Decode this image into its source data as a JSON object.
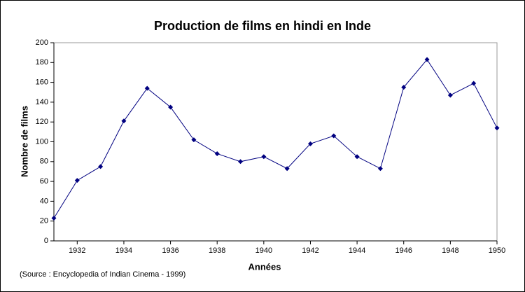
{
  "chart_data": {
    "type": "line",
    "title": "Production de films en hindi en Inde",
    "xlabel": "Années",
    "ylabel": "Nombre de films",
    "source": "(Source : Encyclopedia of Indian Cinema - 1999)",
    "x": [
      1931,
      1932,
      1933,
      1934,
      1935,
      1936,
      1937,
      1938,
      1939,
      1940,
      1941,
      1942,
      1943,
      1944,
      1945,
      1946,
      1947,
      1948,
      1949,
      1950
    ],
    "series": [
      {
        "color": "#000080",
        "values": [
          23,
          61,
          75,
          121,
          154,
          135,
          102,
          88,
          80,
          85,
          73,
          98,
          106,
          85,
          73,
          155,
          183,
          147,
          159,
          114
        ]
      }
    ],
    "xlim": [
      1931,
      1950
    ],
    "xticks": [
      1932,
      1934,
      1936,
      1938,
      1940,
      1942,
      1944,
      1946,
      1948,
      1950
    ],
    "ylim": [
      0,
      200
    ],
    "yticks": [
      0,
      20,
      40,
      60,
      80,
      100,
      120,
      140,
      160,
      180,
      200
    ]
  }
}
